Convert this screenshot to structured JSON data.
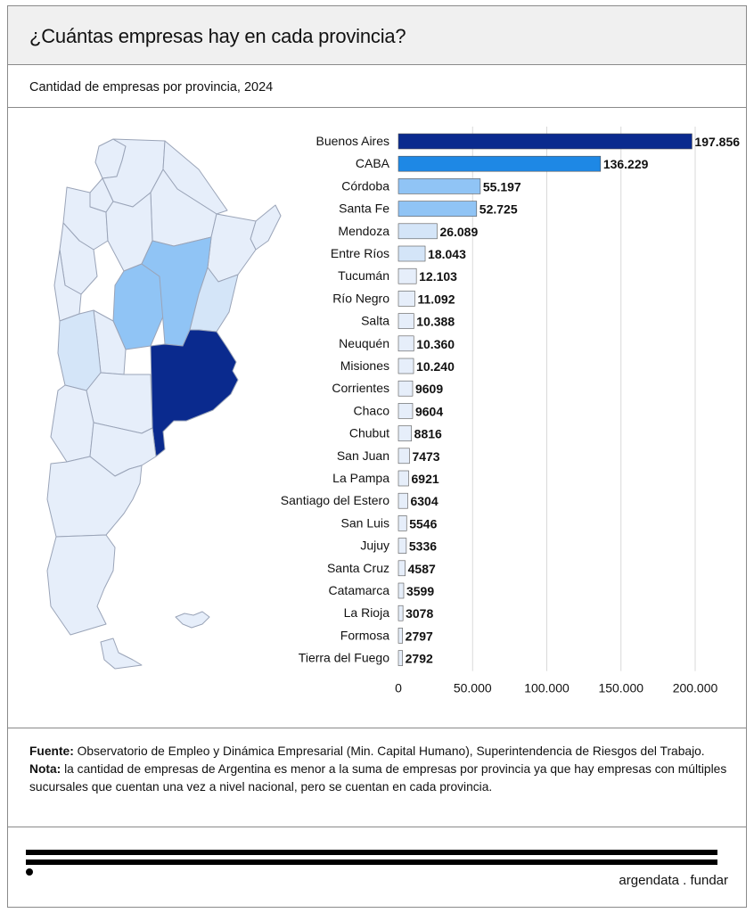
{
  "header": {
    "title": "¿Cuántas empresas hay en cada provincia?",
    "subtitle": "Cantidad de empresas por provincia, 2024"
  },
  "colors": {
    "level1": "#0a2a8e",
    "level2": "#1e88e5",
    "level3": "#90c4f5",
    "level4": "#d4e5f8",
    "level5": "#e6eefa",
    "bar_stroke": "#555555"
  },
  "chart_data": {
    "type": "bar",
    "orientation": "horizontal",
    "categories": [
      "Buenos Aires",
      "CABA",
      "Córdoba",
      "Santa Fe",
      "Mendoza",
      "Entre Ríos",
      "Tucumán",
      "Río Negro",
      "Salta",
      "Neuquén",
      "Misiones",
      "Corrientes",
      "Chaco",
      "Chubut",
      "San Juan",
      "La Pampa",
      "Santiago del Estero",
      "San Luis",
      "Jujuy",
      "Santa Cruz",
      "Catamarca",
      "La Rioja",
      "Formosa",
      "Tierra del Fuego"
    ],
    "values": [
      197856,
      136229,
      55197,
      52725,
      26089,
      18043,
      12103,
      11092,
      10388,
      10360,
      10240,
      9609,
      9604,
      8816,
      7473,
      6921,
      6304,
      5546,
      5336,
      4587,
      3599,
      3078,
      2797,
      2792
    ],
    "value_labels": [
      "197.856",
      "136.229",
      "55.197",
      "52.725",
      "26.089",
      "18.043",
      "12.103",
      "11.092",
      "10.388",
      "10.360",
      "10.240",
      "9609",
      "9604",
      "8816",
      "7473",
      "6921",
      "6304",
      "5546",
      "5336",
      "4587",
      "3599",
      "3078",
      "2797",
      "2792"
    ],
    "xlim": [
      0,
      200000
    ],
    "xticks": [
      0,
      50000,
      100000,
      150000,
      200000
    ],
    "xtick_labels": [
      "0",
      "50.000",
      "100.000",
      "150.000",
      "200.000"
    ],
    "grid": true,
    "title": "¿Cuántas empresas hay en cada provincia?",
    "subtitle": "Cantidad de empresas por provincia, 2024"
  },
  "notes": {
    "source_label": "Fuente:",
    "source_text": " Observatorio de Empleo y Dinámica Empresarial (Min. Capital Humano), Superintendencia de Riesgos del Trabajo.",
    "note_label": "Nota:",
    "note_text": " la cantidad de empresas de Argentina es menor a la suma de empresas por provincia ya que hay empresas con múltiples sucursales que cuentan una vez a nivel nacional, pero se cuentan en cada provincia."
  },
  "logo": {
    "text": "argendata . fundar"
  }
}
